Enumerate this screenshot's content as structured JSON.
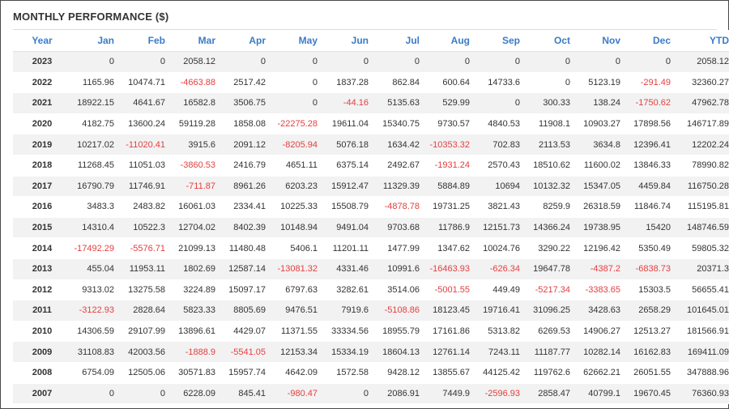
{
  "title": "MONTHLY PERFORMANCE ($)",
  "colors": {
    "header_text": "#3a7bc8",
    "negative": "#e53e3e",
    "row_alt": "#f2f2f2"
  },
  "headers": [
    "Year",
    "Jan",
    "Feb",
    "Mar",
    "Apr",
    "May",
    "Jun",
    "Jul",
    "Aug",
    "Sep",
    "Oct",
    "Nov",
    "Dec",
    "YTD"
  ],
  "rows": [
    [
      "2023",
      "0",
      "0",
      "2058.12",
      "0",
      "0",
      "0",
      "0",
      "0",
      "0",
      "0",
      "0",
      "0",
      "2058.12"
    ],
    [
      "2022",
      "1165.96",
      "10474.71",
      "-4663.88",
      "2517.42",
      "0",
      "1837.28",
      "862.84",
      "600.64",
      "14733.6",
      "0",
      "5123.19",
      "-291.49",
      "32360.27"
    ],
    [
      "2021",
      "18922.15",
      "4641.67",
      "16582.8",
      "3506.75",
      "0",
      "-44.16",
      "5135.63",
      "529.99",
      "0",
      "300.33",
      "138.24",
      "-1750.62",
      "47962.78"
    ],
    [
      "2020",
      "4182.75",
      "13600.24",
      "59119.28",
      "1858.08",
      "-22275.28",
      "19611.04",
      "15340.75",
      "9730.57",
      "4840.53",
      "11908.1",
      "10903.27",
      "17898.56",
      "146717.89"
    ],
    [
      "2019",
      "10217.02",
      "-11020.41",
      "3915.6",
      "2091.12",
      "-8205.94",
      "5076.18",
      "1634.42",
      "-10353.32",
      "702.83",
      "2113.53",
      "3634.8",
      "12396.41",
      "12202.24"
    ],
    [
      "2018",
      "11268.45",
      "11051.03",
      "-3860.53",
      "2416.79",
      "4651.11",
      "6375.14",
      "2492.67",
      "-1931.24",
      "2570.43",
      "18510.62",
      "11600.02",
      "13846.33",
      "78990.82"
    ],
    [
      "2017",
      "16790.79",
      "11746.91",
      "-711.87",
      "8961.26",
      "6203.23",
      "15912.47",
      "11329.39",
      "5884.89",
      "10694",
      "10132.32",
      "15347.05",
      "4459.84",
      "116750.28"
    ],
    [
      "2016",
      "3483.3",
      "2483.82",
      "16061.03",
      "2334.41",
      "10225.33",
      "15508.79",
      "-4878.78",
      "19731.25",
      "3821.43",
      "8259.9",
      "26318.59",
      "11846.74",
      "115195.81"
    ],
    [
      "2015",
      "14310.4",
      "10522.3",
      "12704.02",
      "8402.39",
      "10148.94",
      "9491.04",
      "9703.68",
      "11786.9",
      "12151.73",
      "14366.24",
      "19738.95",
      "15420",
      "148746.59"
    ],
    [
      "2014",
      "-17492.29",
      "-5576.71",
      "21099.13",
      "11480.48",
      "5406.1",
      "11201.11",
      "1477.99",
      "1347.62",
      "10024.76",
      "3290.22",
      "12196.42",
      "5350.49",
      "59805.32"
    ],
    [
      "2013",
      "455.04",
      "11953.11",
      "1802.69",
      "12587.14",
      "-13081.32",
      "4331.46",
      "10991.6",
      "-16463.93",
      "-626.34",
      "19647.78",
      "-4387.2",
      "-6838.73",
      "20371.3"
    ],
    [
      "2012",
      "9313.02",
      "13275.58",
      "3224.89",
      "15097.17",
      "6797.63",
      "3282.61",
      "3514.06",
      "-5001.55",
      "449.49",
      "-5217.34",
      "-3383.65",
      "15303.5",
      "56655.41"
    ],
    [
      "2011",
      "-3122.93",
      "2828.64",
      "5823.33",
      "8805.69",
      "9476.51",
      "7919.6",
      "-5108.86",
      "18123.45",
      "19716.41",
      "31096.25",
      "3428.63",
      "2658.29",
      "101645.01"
    ],
    [
      "2010",
      "14306.59",
      "29107.99",
      "13896.61",
      "4429.07",
      "11371.55",
      "33334.56",
      "18955.79",
      "17161.86",
      "5313.82",
      "6269.53",
      "14906.27",
      "12513.27",
      "181566.91"
    ],
    [
      "2009",
      "31108.83",
      "42003.56",
      "-1888.9",
      "-5541.05",
      "12153.34",
      "15334.19",
      "18604.13",
      "12761.14",
      "7243.11",
      "11187.77",
      "10282.14",
      "16162.83",
      "169411.09"
    ],
    [
      "2008",
      "6754.09",
      "12505.06",
      "30571.83",
      "15957.74",
      "4642.09",
      "1572.58",
      "9428.12",
      "13855.67",
      "44125.42",
      "119762.6",
      "62662.21",
      "26051.55",
      "347888.96"
    ],
    [
      "2007",
      "0",
      "0",
      "6228.09",
      "845.41",
      "-980.47",
      "0",
      "2086.91",
      "7449.9",
      "-2596.93",
      "2858.47",
      "40799.1",
      "19670.45",
      "76360.93"
    ]
  ]
}
